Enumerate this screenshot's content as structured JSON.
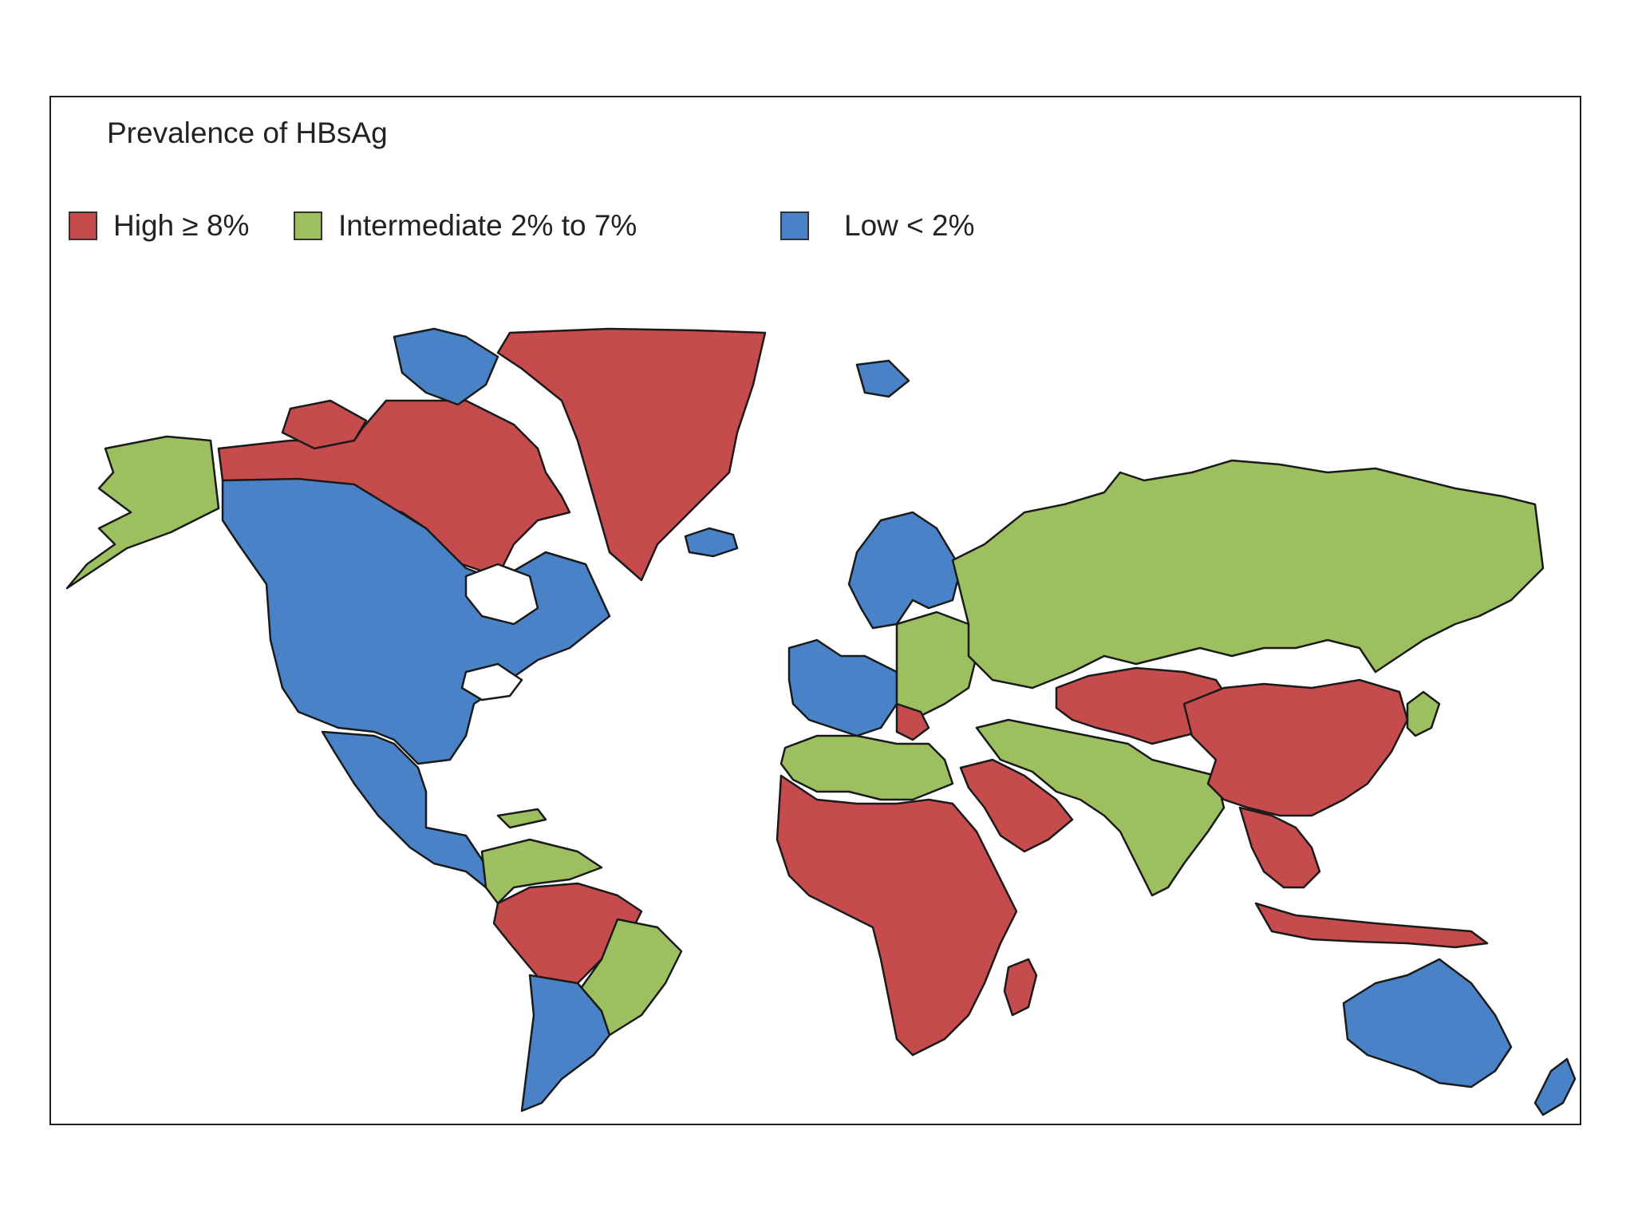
{
  "title": "Prevalence of HBsAg",
  "legend": [
    {
      "label": "High ≥ 8%",
      "color": "#c64b4d",
      "category": "high"
    },
    {
      "label": "Intermediate 2% to 7%",
      "color": "#9cc05f",
      "category": "intermediate"
    },
    {
      "label": "Low < 2%",
      "color": "#4a82c8",
      "category": "low"
    }
  ],
  "colors": {
    "high": "#c64b4d",
    "intermediate": "#9cc05f",
    "low": "#4a82c8",
    "lakes": "#ffffff",
    "frame": "#222222"
  },
  "regions": [
    {
      "name": "Alaska",
      "category": "intermediate"
    },
    {
      "name": "Northern Canada",
      "category": "high"
    },
    {
      "name": "Canada and United States",
      "category": "low"
    },
    {
      "name": "Greenland",
      "category": "high"
    },
    {
      "name": "Mexico and Central America",
      "category": "low"
    },
    {
      "name": "Caribbean",
      "category": "intermediate"
    },
    {
      "name": "Colombia and Venezuela",
      "category": "intermediate"
    },
    {
      "name": "Amazon basin",
      "category": "high"
    },
    {
      "name": "Brazil (east)",
      "category": "intermediate"
    },
    {
      "name": "Southern South America",
      "category": "low"
    },
    {
      "name": "Iceland",
      "category": "low"
    },
    {
      "name": "Svalbard",
      "category": "low"
    },
    {
      "name": "Scandinavia",
      "category": "low"
    },
    {
      "name": "Western Europe",
      "category": "low"
    },
    {
      "name": "Eastern Europe",
      "category": "intermediate"
    },
    {
      "name": "Balkans",
      "category": "high"
    },
    {
      "name": "Russia",
      "category": "intermediate"
    },
    {
      "name": "North Africa",
      "category": "intermediate"
    },
    {
      "name": "Sub-Saharan Africa",
      "category": "high"
    },
    {
      "name": "Madagascar",
      "category": "high"
    },
    {
      "name": "Arabian Peninsula",
      "category": "high"
    },
    {
      "name": "Middle East and South Asia",
      "category": "intermediate"
    },
    {
      "name": "Central Asia",
      "category": "high"
    },
    {
      "name": "China",
      "category": "high"
    },
    {
      "name": "Japan",
      "category": "intermediate"
    },
    {
      "name": "Southeast Asia",
      "category": "high"
    },
    {
      "name": "Indonesia and Philippines",
      "category": "high"
    },
    {
      "name": "Australia",
      "category": "low"
    },
    {
      "name": "New Zealand",
      "category": "low"
    }
  ]
}
